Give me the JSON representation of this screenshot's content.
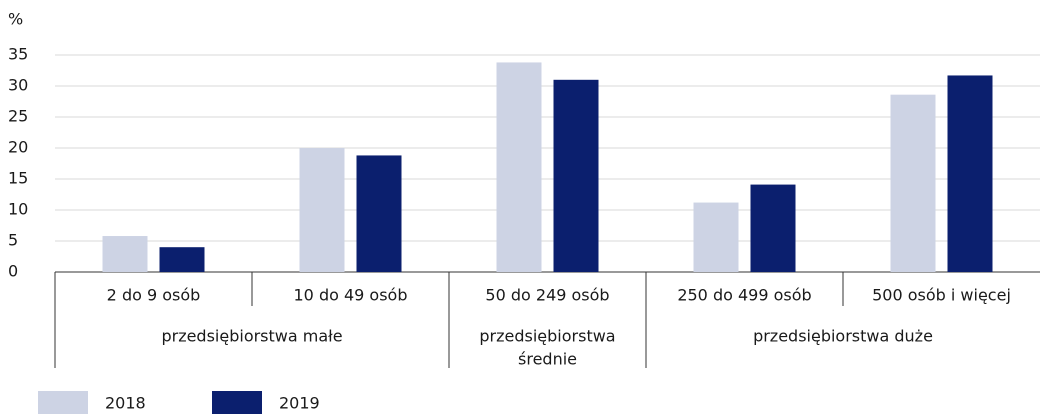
{
  "chart_data": {
    "type": "bar",
    "y_label": "%",
    "categories": [
      "2 do 9 osób",
      "10 do 49 osób",
      "50 do 249 osób",
      "250 do 499 osób",
      "500 osób i więcej"
    ],
    "groups": [
      {
        "lines": [
          "przedsiębiorstwa małe"
        ],
        "count": 2
      },
      {
        "lines": [
          "przedsiębiorstwa",
          "średnie"
        ],
        "count": 1
      },
      {
        "lines": [
          "przedsiębiorstwa duże"
        ],
        "count": 2
      }
    ],
    "series": [
      {
        "name": "2018",
        "color": "#cdd3e4",
        "values": [
          5.8,
          20,
          33.8,
          11.2,
          28.6
        ]
      },
      {
        "name": "2019",
        "color": "#0b1f6e",
        "values": [
          4,
          18.8,
          31,
          14.1,
          31.7
        ]
      }
    ],
    "ylim": [
      0,
      35
    ],
    "yticks": [
      0,
      5,
      10,
      15,
      20,
      25,
      30,
      35
    ],
    "grid": true
  }
}
